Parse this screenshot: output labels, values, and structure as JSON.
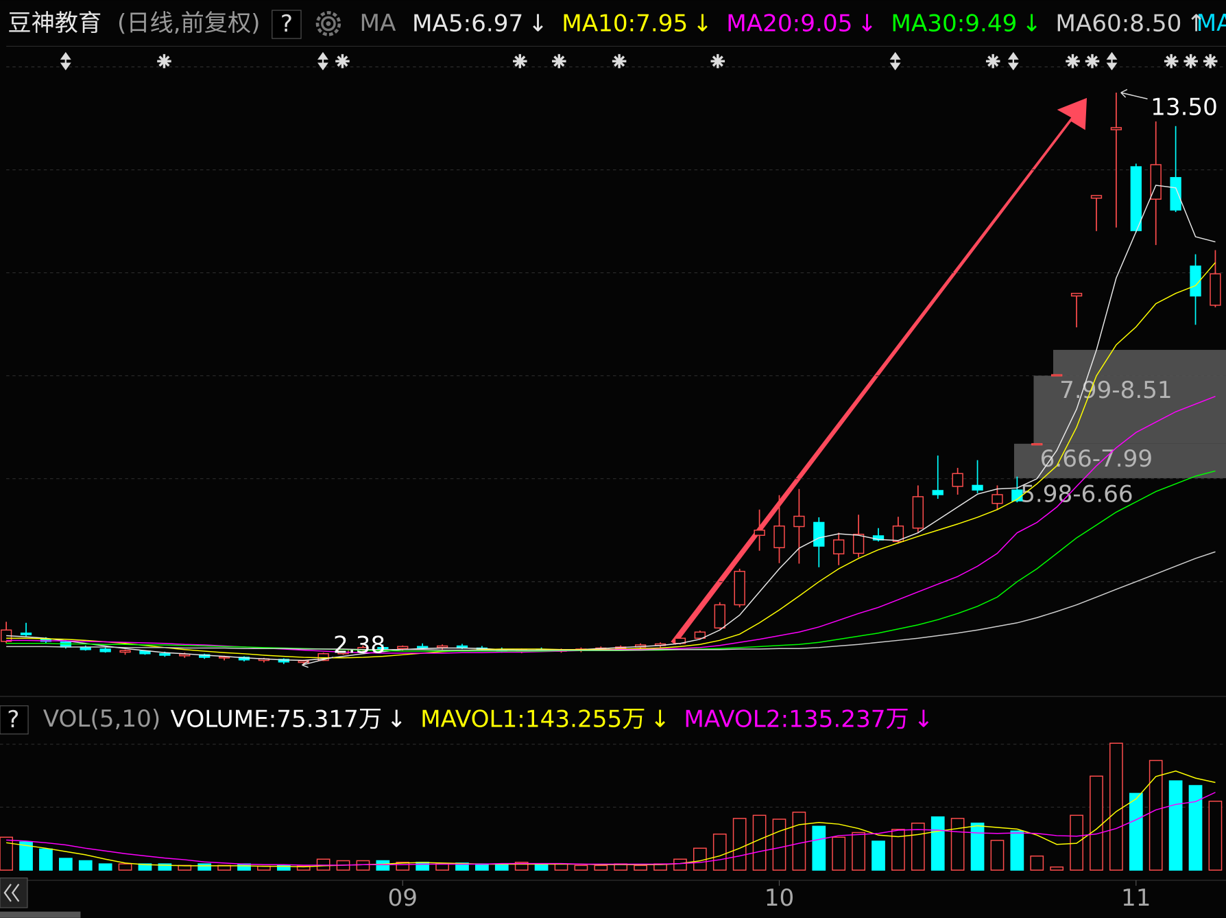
{
  "header": {
    "title": "豆神教育",
    "subtitle": "(日线,前复权)",
    "help": "?",
    "indicator": "MA",
    "cut_legend": "MA"
  },
  "chart_data": {
    "type": "candlestick",
    "categories": [
      null,
      null,
      null,
      null,
      null,
      null,
      null,
      null,
      null,
      null,
      null,
      null,
      null,
      null,
      null,
      null,
      null,
      null,
      null,
      null,
      "09",
      null,
      null,
      null,
      null,
      null,
      null,
      null,
      null,
      null,
      null,
      null,
      null,
      null,
      null,
      null,
      null,
      null,
      null,
      "10",
      null,
      null,
      null,
      null,
      null,
      null,
      null,
      null,
      null,
      null,
      null,
      null,
      null,
      null,
      null,
      null,
      null,
      "11",
      null,
      null,
      null,
      null
    ],
    "open": [
      2.84,
      3.0,
      2.88,
      2.83,
      2.72,
      2.69,
      2.63,
      2.65,
      2.6,
      2.56,
      2.58,
      2.52,
      2.53,
      2.47,
      2.49,
      2.43,
      2.47,
      2.6,
      2.68,
      2.72,
      2.7,
      2.74,
      2.72,
      2.75,
      2.71,
      2.68,
      2.65,
      2.68,
      2.66,
      2.67,
      2.69,
      2.71,
      2.73,
      2.76,
      2.8,
      2.9,
      3.1,
      3.55,
      4.9,
      4.66,
      5.07,
      5.15,
      4.54,
      4.55,
      4.89,
      4.78,
      5.04,
      5.77,
      5.85,
      5.87,
      5.52,
      5.78,
      6.68,
      8.02,
      9.55,
      11.45,
      12.78,
      12.06,
      11.43,
      11.85,
      10.13,
      9.37
    ],
    "high": [
      3.22,
      3.2,
      2.92,
      2.86,
      2.76,
      2.72,
      2.68,
      2.67,
      2.64,
      2.62,
      2.6,
      2.56,
      2.55,
      2.52,
      2.51,
      2.48,
      2.62,
      2.7,
      2.76,
      2.78,
      2.76,
      2.8,
      2.78,
      2.79,
      2.75,
      2.72,
      2.7,
      2.72,
      2.7,
      2.72,
      2.74,
      2.76,
      2.8,
      2.82,
      2.92,
      3.05,
      3.6,
      4.25,
      5.4,
      5.68,
      5.8,
      5.25,
      4.95,
      5.3,
      5.04,
      5.26,
      5.87,
      6.45,
      6.21,
      6.36,
      5.87,
      6.04,
      6.68,
      8.02,
      9.6,
      11.5,
      13.5,
      12.12,
      12.94,
      12.85,
      10.36,
      10.44
    ],
    "low": [
      2.8,
      2.94,
      2.8,
      2.7,
      2.66,
      2.62,
      2.58,
      2.58,
      2.54,
      2.52,
      2.5,
      2.47,
      2.45,
      2.43,
      2.4,
      2.38,
      2.46,
      2.58,
      2.64,
      2.66,
      2.66,
      2.7,
      2.68,
      2.69,
      2.66,
      2.62,
      2.61,
      2.63,
      2.62,
      2.63,
      2.65,
      2.67,
      2.7,
      2.72,
      2.78,
      2.88,
      3.08,
      3.5,
      4.6,
      4.36,
      4.35,
      4.28,
      4.32,
      4.47,
      4.78,
      4.74,
      4.96,
      5.61,
      5.69,
      5.72,
      5.39,
      5.54,
      6.68,
      8.02,
      8.94,
      10.81,
      10.88,
      10.78,
      10.54,
      11.18,
      8.99,
      9.33
    ],
    "close": [
      3.06,
      2.97,
      2.84,
      2.73,
      2.68,
      2.64,
      2.66,
      2.6,
      2.57,
      2.59,
      2.53,
      2.54,
      2.48,
      2.5,
      2.44,
      2.46,
      2.6,
      2.68,
      2.72,
      2.7,
      2.74,
      2.72,
      2.75,
      2.71,
      2.68,
      2.65,
      2.68,
      2.66,
      2.67,
      2.69,
      2.71,
      2.73,
      2.77,
      2.79,
      2.9,
      3.02,
      3.55,
      4.2,
      5.0,
      5.08,
      5.27,
      4.69,
      4.81,
      4.92,
      4.81,
      5.08,
      5.65,
      5.69,
      6.1,
      5.78,
      5.69,
      5.57,
      6.68,
      8.02,
      9.6,
      11.5,
      12.82,
      10.82,
      12.1,
      11.22,
      9.55,
      9.98
    ],
    "up_color": "#ff4d4d",
    "down_color": "#00ffff",
    "ylim": [
      1.8,
      14.4
    ],
    "grid_levels": [
      4,
      6,
      8,
      10,
      12,
      14
    ],
    "series": [
      {
        "label": "MA5:6.97",
        "trend": "↓",
        "color": "#e8e8e8",
        "values": [
          2.95,
          2.93,
          2.9,
          2.85,
          2.8,
          2.75,
          2.7,
          2.66,
          2.62,
          2.6,
          2.57,
          2.55,
          2.52,
          2.5,
          2.48,
          2.47,
          2.5,
          2.55,
          2.6,
          2.64,
          2.68,
          2.7,
          2.71,
          2.71,
          2.7,
          2.68,
          2.67,
          2.67,
          2.67,
          2.68,
          2.7,
          2.72,
          2.74,
          2.76,
          2.8,
          2.88,
          3.06,
          3.35,
          3.8,
          4.25,
          4.65,
          4.85,
          4.93,
          4.9,
          4.82,
          4.8,
          4.95,
          5.2,
          5.45,
          5.7,
          5.8,
          5.82,
          6.0,
          6.55,
          7.35,
          8.5,
          9.9,
          10.8,
          11.7,
          11.65,
          10.7,
          10.6
        ]
      },
      {
        "label": "MA10:7.95",
        "trend": "↓",
        "color": "#ffff00",
        "values": [
          2.9,
          2.9,
          2.89,
          2.88,
          2.86,
          2.83,
          2.8,
          2.76,
          2.72,
          2.68,
          2.65,
          2.62,
          2.6,
          2.57,
          2.55,
          2.53,
          2.52,
          2.52,
          2.53,
          2.55,
          2.58,
          2.61,
          2.64,
          2.66,
          2.68,
          2.69,
          2.69,
          2.69,
          2.68,
          2.68,
          2.68,
          2.69,
          2.7,
          2.71,
          2.74,
          2.78,
          2.86,
          2.98,
          3.2,
          3.45,
          3.72,
          4.0,
          4.25,
          4.45,
          4.62,
          4.75,
          4.88,
          5.0,
          5.12,
          5.25,
          5.4,
          5.6,
          5.9,
          6.25,
          7.0,
          8.0,
          8.6,
          8.95,
          9.4,
          9.6,
          9.75,
          10.2
        ]
      },
      {
        "label": "MA20:9.05",
        "trend": "↓",
        "color": "#ff00ff",
        "values": [
          2.86,
          2.86,
          2.85,
          2.85,
          2.84,
          2.83,
          2.82,
          2.81,
          2.8,
          2.78,
          2.77,
          2.75,
          2.73,
          2.71,
          2.69,
          2.67,
          2.65,
          2.63,
          2.62,
          2.61,
          2.61,
          2.61,
          2.61,
          2.62,
          2.62,
          2.63,
          2.63,
          2.64,
          2.65,
          2.66,
          2.67,
          2.68,
          2.68,
          2.69,
          2.7,
          2.72,
          2.76,
          2.82,
          2.88,
          2.95,
          3.02,
          3.12,
          3.25,
          3.38,
          3.5,
          3.65,
          3.8,
          3.95,
          4.1,
          4.3,
          4.55,
          4.95,
          5.15,
          5.45,
          5.85,
          6.25,
          6.6,
          6.9,
          7.1,
          7.3,
          7.45,
          7.6
        ]
      },
      {
        "label": "MA30:9.49",
        "trend": "↓",
        "color": "#00ff00",
        "values": [
          2.8,
          2.8,
          2.8,
          2.79,
          2.79,
          2.78,
          2.78,
          2.77,
          2.77,
          2.76,
          2.75,
          2.74,
          2.73,
          2.72,
          2.71,
          2.7,
          2.69,
          2.68,
          2.67,
          2.66,
          2.65,
          2.65,
          2.65,
          2.65,
          2.65,
          2.65,
          2.65,
          2.65,
          2.66,
          2.66,
          2.66,
          2.66,
          2.67,
          2.67,
          2.68,
          2.69,
          2.7,
          2.72,
          2.74,
          2.76,
          2.78,
          2.82,
          2.88,
          2.94,
          3.0,
          3.08,
          3.16,
          3.26,
          3.38,
          3.52,
          3.7,
          4.0,
          4.25,
          4.55,
          4.85,
          5.1,
          5.35,
          5.55,
          5.75,
          5.9,
          6.05,
          6.15
        ]
      },
      {
        "label": "MA60:8.50",
        "trend": "↑",
        "color": "#d0d0d0",
        "values": [
          2.74,
          2.74,
          2.74,
          2.73,
          2.73,
          2.73,
          2.72,
          2.72,
          2.72,
          2.71,
          2.71,
          2.71,
          2.7,
          2.7,
          2.7,
          2.69,
          2.69,
          2.69,
          2.68,
          2.68,
          2.68,
          2.68,
          2.67,
          2.67,
          2.67,
          2.67,
          2.67,
          2.67,
          2.67,
          2.67,
          2.67,
          2.67,
          2.67,
          2.68,
          2.68,
          2.68,
          2.68,
          2.69,
          2.69,
          2.7,
          2.7,
          2.72,
          2.75,
          2.78,
          2.82,
          2.86,
          2.9,
          2.95,
          3.0,
          3.06,
          3.13,
          3.2,
          3.3,
          3.42,
          3.55,
          3.7,
          3.85,
          4.0,
          4.15,
          4.3,
          4.45,
          4.58
        ]
      }
    ],
    "annotations": [
      {
        "value": 13.5,
        "label": "13.50",
        "kind": "high"
      },
      {
        "value": 2.38,
        "kind": "low"
      }
    ],
    "gap_labels": [
      "7.99-8.51",
      "6.66-7.99",
      "5.98-6.66"
    ],
    "volume": {
      "title": "VOL(5,10)",
      "help": "?",
      "values": [
        60.1,
        51.5,
        38.6,
        21.5,
        17.2,
        11.4,
        11.4,
        11.4,
        11.4,
        8.6,
        11.4,
        8.6,
        11.4,
        7.2,
        8.6,
        7.2,
        20.0,
        17.2,
        17.2,
        17.2,
        14.3,
        14.3,
        11.4,
        12.9,
        11.4,
        11.4,
        14.3,
        11.4,
        11.4,
        8.6,
        8.6,
        11.4,
        8.6,
        11.4,
        20.0,
        40.0,
        65.8,
        94.4,
        100.1,
        93.0,
        105.8,
        80.1,
        60.1,
        68.6,
        52.9,
        74.4,
        85.8,
        97.2,
        94.4,
        85.8,
        54.3,
        71.5,
        25.7,
        5.7,
        100.1,
        171.6,
        231.7,
        140.1,
        200.2,
        163.0,
        154.4,
        125.8
      ],
      "vlim": [
        0,
        240
      ],
      "grid_levels": [
        115,
        230
      ],
      "legend": [
        {
          "label": "VOLUME:75.317万",
          "trend": "↓",
          "color": "#ffffff"
        }
      ],
      "series": [
        {
          "label": "MAVOL1:143.255万",
          "trend": "↓",
          "color": "#ffff00",
          "values": [
            50,
            45,
            40,
            34,
            28,
            20,
            13,
            10,
            9,
            8,
            8,
            8,
            8,
            7,
            7,
            6,
            8,
            9,
            10,
            11,
            13,
            14,
            13,
            12,
            11,
            11,
            11,
            11,
            11,
            11,
            10,
            10,
            10,
            10,
            12,
            17,
            26,
            40,
            56,
            71,
            83,
            87,
            84,
            76,
            64,
            61,
            65,
            71,
            76,
            81,
            78,
            75,
            64,
            47,
            49,
            75,
            107,
            130,
            171,
            181,
            168,
            160
          ]
        },
        {
          "label": "MAVOL2:135.237万",
          "trend": "↓",
          "color": "#ff00ff",
          "values": [
            55,
            53,
            50,
            46,
            40,
            35,
            30,
            26,
            22,
            19,
            15,
            13,
            11,
            10,
            10,
            9,
            9,
            9,
            10,
            10,
            10,
            11,
            11,
            11,
            11,
            12,
            12,
            12,
            12,
            11,
            11,
            11,
            11,
            11,
            12,
            14,
            19,
            26,
            34,
            41,
            49,
            56,
            63,
            65,
            67,
            73,
            74,
            73,
            70,
            68,
            67,
            68,
            67,
            63,
            62,
            66,
            76,
            92,
            110,
            120,
            125,
            142
          ]
        }
      ]
    }
  }
}
